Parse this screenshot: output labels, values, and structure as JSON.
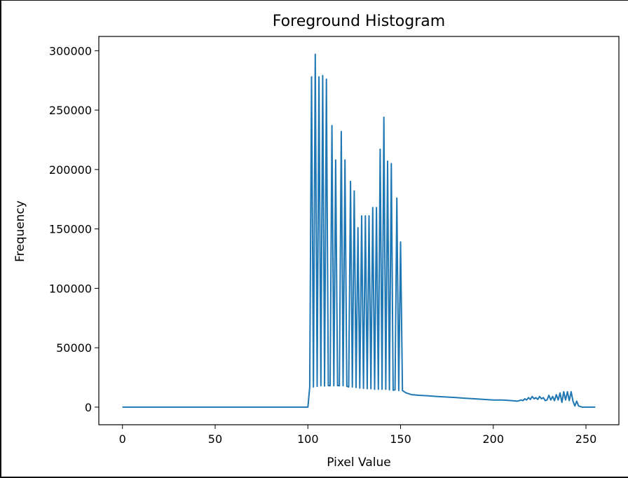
{
  "chart_data": {
    "type": "line",
    "title": "Foreground Histogram",
    "xlabel": "Pixel Value",
    "ylabel": "Frequency",
    "xlim": [
      -12.75,
      267.75
    ],
    "ylim": [
      -14800,
      312000
    ],
    "xticks": [
      0,
      50,
      100,
      150,
      200,
      250
    ],
    "yticks": [
      0,
      50000,
      100000,
      150000,
      200000,
      250000,
      300000
    ],
    "xtick_labels": [
      "0",
      "50",
      "100",
      "150",
      "200",
      "250"
    ],
    "ytick_labels": [
      "0",
      "50000",
      "100000",
      "150000",
      "200000",
      "250000",
      "300000"
    ],
    "line_color": "#1f77b4",
    "grid": false,
    "series": [
      {
        "x": [
          0,
          10,
          20,
          30,
          40,
          50,
          60,
          70,
          80,
          90,
          99,
          100,
          101,
          102,
          103,
          104,
          105,
          106,
          107,
          108,
          109,
          110,
          111,
          112,
          113,
          114,
          115,
          116,
          117,
          118,
          119,
          120,
          121,
          122,
          123,
          124,
          125,
          126,
          127,
          128,
          129,
          130,
          131,
          132,
          133,
          134,
          135,
          136,
          137,
          138,
          139,
          140,
          141,
          142,
          143,
          144,
          145,
          146,
          147,
          148,
          149,
          150,
          151,
          152,
          153,
          154,
          155,
          156,
          160,
          165,
          170,
          175,
          180,
          185,
          190,
          195,
          200,
          205,
          210,
          213,
          215,
          216,
          217,
          218,
          219,
          220,
          221,
          222,
          223,
          224,
          225,
          226,
          227,
          228,
          229,
          230,
          231,
          232,
          233,
          234,
          235,
          236,
          237,
          238,
          239,
          240,
          241,
          242,
          243,
          244,
          245,
          246,
          247,
          248,
          249,
          250,
          251,
          252,
          253,
          254,
          255
        ],
        "y": [
          0,
          0,
          0,
          0,
          0,
          0,
          0,
          0,
          0,
          0,
          0,
          0,
          17000,
          278000,
          17000,
          297000,
          17500,
          278000,
          18000,
          279000,
          17800,
          276000,
          18200,
          18000,
          237000,
          18000,
          208000,
          18200,
          18000,
          232000,
          18000,
          208000,
          17500,
          17000,
          190000,
          17000,
          182000,
          16500,
          151000,
          16000,
          161000,
          15800,
          161000,
          15500,
          161000,
          15500,
          168000,
          15000,
          168000,
          15000,
          217000,
          15000,
          244000,
          15000,
          207000,
          14500,
          205000,
          14200,
          14500,
          176000,
          14000,
          139000,
          14000,
          13000,
          12000,
          11500,
          11000,
          10500,
          10000,
          9500,
          9000,
          8500,
          8000,
          7500,
          7000,
          6500,
          6000,
          6000,
          5500,
          5000,
          6000,
          5500,
          7000,
          6000,
          8000,
          6500,
          9000,
          7000,
          8000,
          6500,
          9000,
          7000,
          8000,
          5500,
          6000,
          10000,
          6000,
          9000,
          5500,
          10500,
          6000,
          12000,
          4000,
          13000,
          6000,
          13000,
          5500,
          13000,
          5000,
          1000,
          5000,
          1000,
          500,
          0,
          0,
          0,
          0,
          0,
          0,
          0,
          0
        ]
      }
    ]
  }
}
